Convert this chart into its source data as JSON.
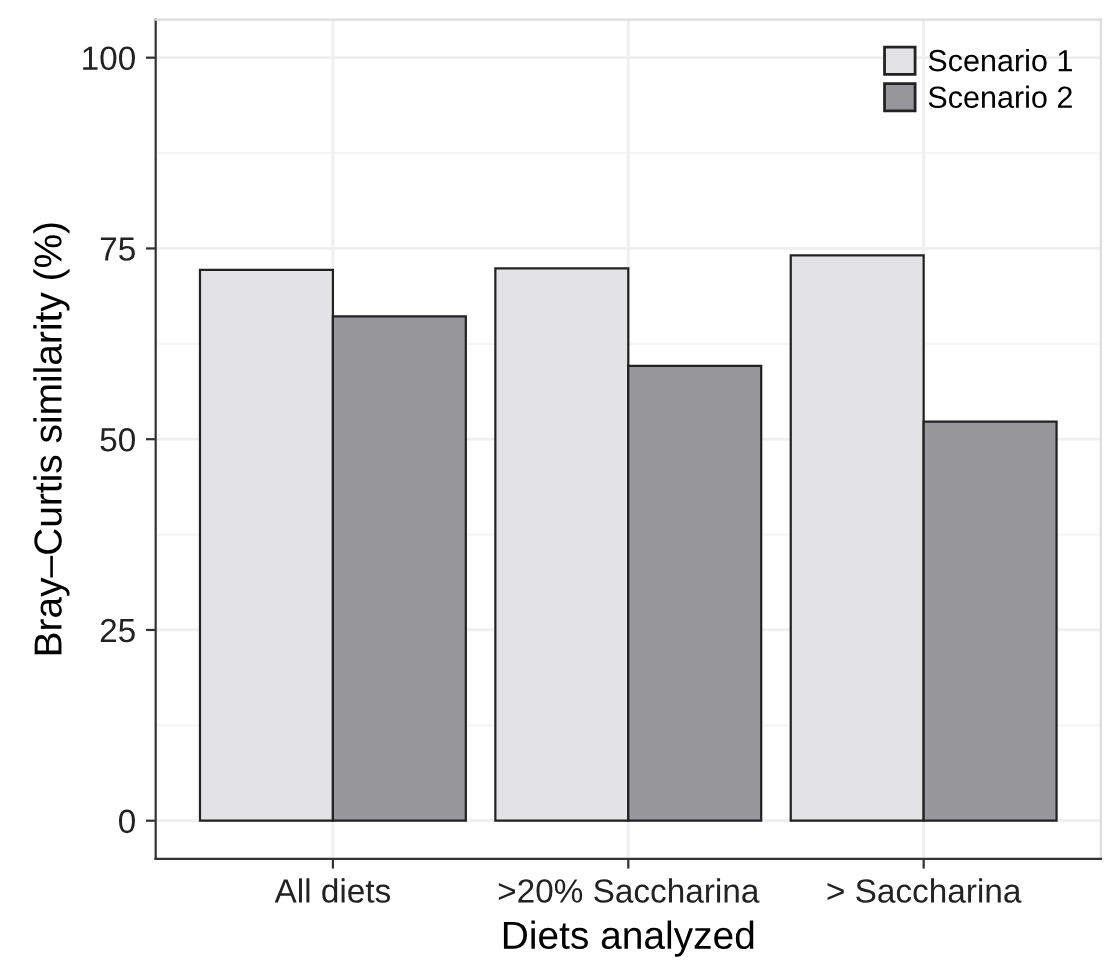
{
  "chart_data": {
    "type": "bar",
    "xlabel": "Diets analyzed",
    "ylabel": "Bray–Curtis similarity (%)",
    "categories": [
      "All diets",
      ">20% Saccharina",
      "> Saccharina"
    ],
    "series": [
      {
        "name": "Scenario 1",
        "color": "#e3e3e5",
        "values": [
          72.2,
          72.4,
          74.1
        ]
      },
      {
        "name": "Scenario 2",
        "color": "#98979c",
        "values": [
          66.1,
          59.6,
          52.3
        ]
      }
    ],
    "ylim": [
      -5,
      105
    ],
    "yticks": [
      0,
      25,
      50,
      75,
      100
    ],
    "grid": true,
    "legend": "top right"
  }
}
